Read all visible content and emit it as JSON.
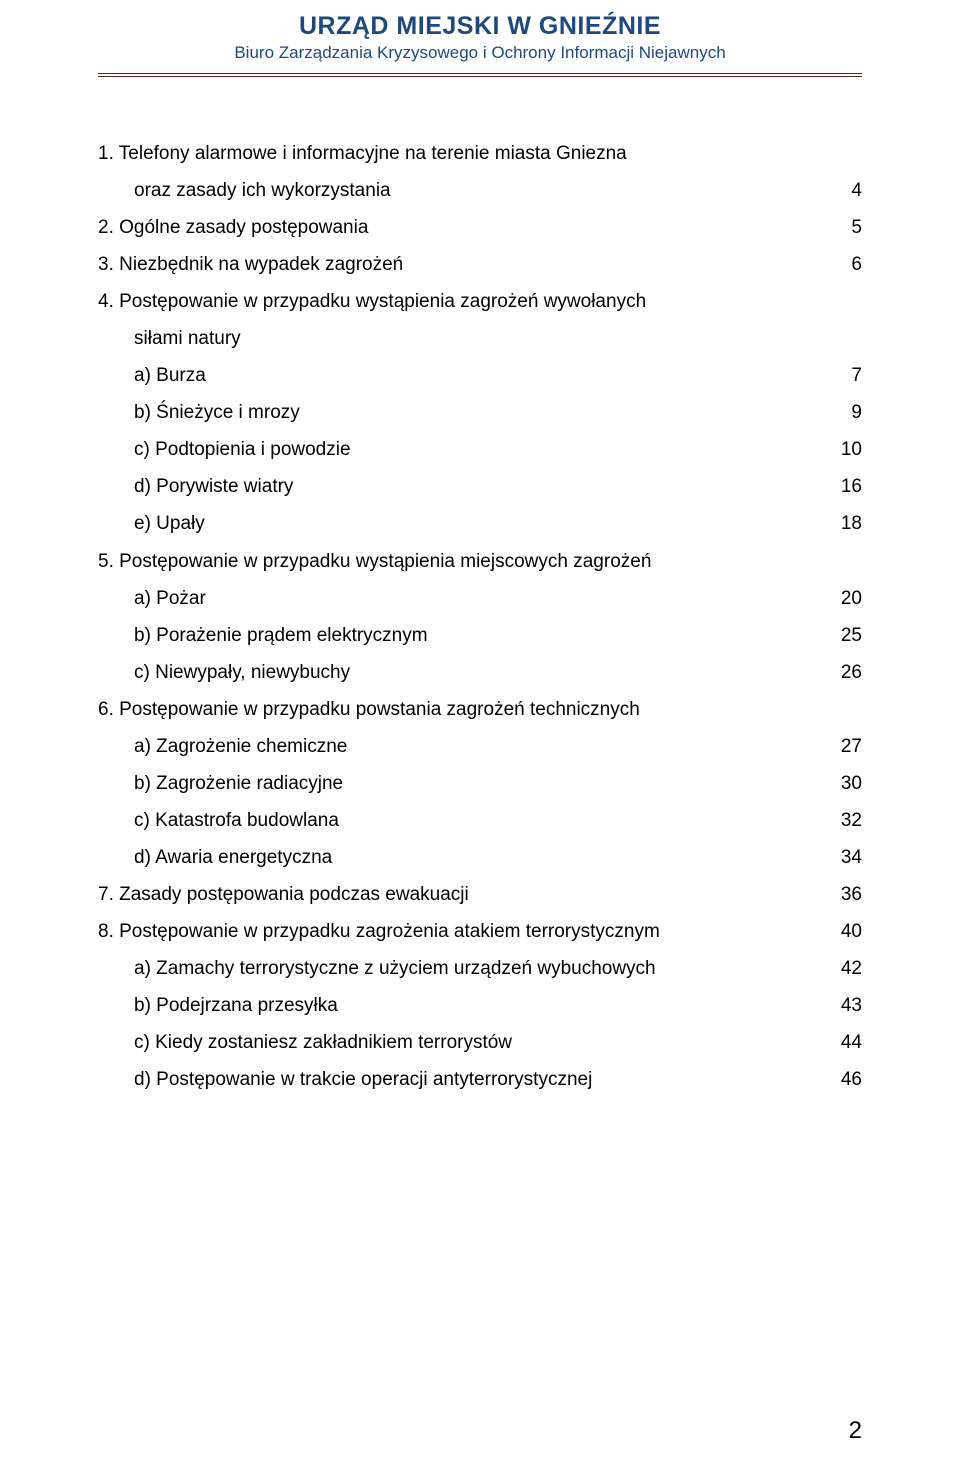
{
  "header": {
    "title": "URZĄD MIEJSKI W GNIEŹNIE",
    "subtitle": "Biuro Zarządzania Kryzysowego i Ochrony Informacji Niejawnych"
  },
  "toc": {
    "i1": {
      "line1": "1. Telefony alarmowe i informacyjne na terenie miasta Gniezna",
      "line2": "oraz zasady ich wykorzystania",
      "page": "4"
    },
    "i2": {
      "text": "2. Ogólne zasady postępowania",
      "page": "5"
    },
    "i3": {
      "text": "3. Niezbędnik na wypadek zagrożeń",
      "page": "6"
    },
    "i4": {
      "line1": "4. Postępowanie w przypadku wystąpienia zagrożeń wywołanych",
      "line2": "siłami natury"
    },
    "i4a": {
      "text": "a)  Burza",
      "page": "7"
    },
    "i4b": {
      "text": "b)  Śnieżyce i mrozy",
      "page": "9"
    },
    "i4c": {
      "text": "c)  Podtopienia i powodzie",
      "page": "10"
    },
    "i4d": {
      "text": "d)  Porywiste wiatry",
      "page": "16"
    },
    "i4e": {
      "text": "e)  Upały",
      "page": "18"
    },
    "i5": {
      "text": "5. Postępowanie w przypadku wystąpienia miejscowych zagrożeń"
    },
    "i5a": {
      "text": "a)  Pożar",
      "page": "20"
    },
    "i5b": {
      "text": "b)  Porażenie prądem elektrycznym",
      "page": "25"
    },
    "i5c": {
      "text": "c)  Niewypały, niewybuchy",
      "page": "26"
    },
    "i6": {
      "text": "6. Postępowanie w przypadku powstania zagrożeń technicznych"
    },
    "i6a": {
      "text": "a)  Zagrożenie chemiczne",
      "page": "27"
    },
    "i6b": {
      "text": "b)  Zagrożenie radiacyjne",
      "page": "30"
    },
    "i6c": {
      "text": "c)  Katastrofa budowlana",
      "page": "32"
    },
    "i6d": {
      "text": "d)  Awaria energetyczna",
      "page": "34"
    },
    "i7": {
      "text": "7. Zasady postępowania podczas ewakuacji",
      "page": "36"
    },
    "i8": {
      "text": "8. Postępowanie w przypadku zagrożenia atakiem terrorystycznym",
      "page": "40"
    },
    "i8a": {
      "text": "a)  Zamachy terrorystyczne z użyciem urządzeń wybuchowych",
      "page": "42"
    },
    "i8b": {
      "text": "b)  Podejrzana przesyłka",
      "page": "43"
    },
    "i8c": {
      "text": "c)  Kiedy zostaniesz zakładnikiem terrorystów",
      "page": "44"
    },
    "i8d": {
      "text": "d)  Postępowanie w trakcie operacji antyterrorystycznej",
      "page": "46"
    }
  },
  "footer": {
    "page_number": "2"
  },
  "style": {
    "header_color": "#1f497d",
    "divider_color": "#622423",
    "body_font": "Arial",
    "header_font": "Verdana",
    "title_fontsize": 25,
    "subtitle_fontsize": 17,
    "body_fontsize": 19,
    "page_number_fontsize": 24
  }
}
